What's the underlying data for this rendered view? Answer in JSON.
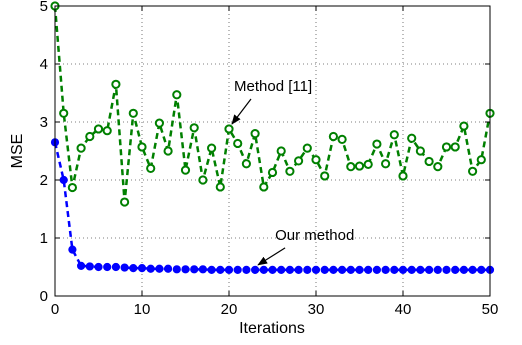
{
  "chart_data": {
    "type": "line",
    "xlabel": "Iterations",
    "ylabel": "MSE",
    "xlim": [
      0,
      50
    ],
    "ylim": [
      0,
      5
    ],
    "xticks": [
      0,
      10,
      20,
      30,
      40,
      50
    ],
    "yticks": [
      0,
      1,
      2,
      3,
      4,
      5
    ],
    "grid": true,
    "series": [
      {
        "name": "Method [11]",
        "color": "#008000",
        "line_style": "dashed",
        "marker": "circle-open",
        "x": [
          0,
          1,
          2,
          3,
          4,
          5,
          6,
          7,
          8,
          9,
          10,
          11,
          12,
          13,
          14,
          15,
          16,
          17,
          18,
          19,
          20,
          21,
          22,
          23,
          24,
          25,
          26,
          27,
          28,
          29,
          30,
          31,
          32,
          33,
          34,
          35,
          36,
          37,
          38,
          39,
          40,
          41,
          42,
          43,
          44,
          45,
          46,
          47,
          48,
          49,
          50
        ],
        "values": [
          5.0,
          3.15,
          1.87,
          2.55,
          2.75,
          2.88,
          2.85,
          3.65,
          1.62,
          3.15,
          2.57,
          2.2,
          2.98,
          2.5,
          3.47,
          2.17,
          2.9,
          2.0,
          2.55,
          1.88,
          2.88,
          2.63,
          2.28,
          2.8,
          1.88,
          2.13,
          2.5,
          2.15,
          2.33,
          2.55,
          2.35,
          2.07,
          2.75,
          2.7,
          2.23,
          2.24,
          2.27,
          2.62,
          2.28,
          2.78,
          2.07,
          2.72,
          2.5,
          2.32,
          2.23,
          2.57,
          2.57,
          2.93,
          2.15,
          2.35,
          3.15
        ]
      },
      {
        "name": "Our method",
        "color": "#0000ff",
        "line_style": "dashed",
        "marker": "circle-filled",
        "x": [
          0,
          1,
          2,
          3,
          4,
          5,
          6,
          7,
          8,
          9,
          10,
          11,
          12,
          13,
          14,
          15,
          16,
          17,
          18,
          19,
          20,
          21,
          22,
          23,
          24,
          25,
          26,
          27,
          28,
          29,
          30,
          31,
          32,
          33,
          34,
          35,
          36,
          37,
          38,
          39,
          40,
          41,
          42,
          43,
          44,
          45,
          46,
          47,
          48,
          49,
          50
        ],
        "values": [
          2.65,
          2.0,
          0.8,
          0.52,
          0.51,
          0.5,
          0.5,
          0.5,
          0.49,
          0.48,
          0.48,
          0.47,
          0.47,
          0.47,
          0.46,
          0.46,
          0.46,
          0.46,
          0.45,
          0.45,
          0.45,
          0.45,
          0.45,
          0.45,
          0.45,
          0.45,
          0.45,
          0.45,
          0.45,
          0.45,
          0.45,
          0.45,
          0.45,
          0.45,
          0.45,
          0.45,
          0.45,
          0.45,
          0.45,
          0.45,
          0.45,
          0.45,
          0.45,
          0.45,
          0.45,
          0.45,
          0.45,
          0.45,
          0.45,
          0.45,
          0.45
        ]
      }
    ],
    "annotations": [
      {
        "text": "Method [11]",
        "series": 0,
        "at_x": 20
      },
      {
        "text": "Our method",
        "series": 1,
        "at_x": 23
      }
    ]
  }
}
